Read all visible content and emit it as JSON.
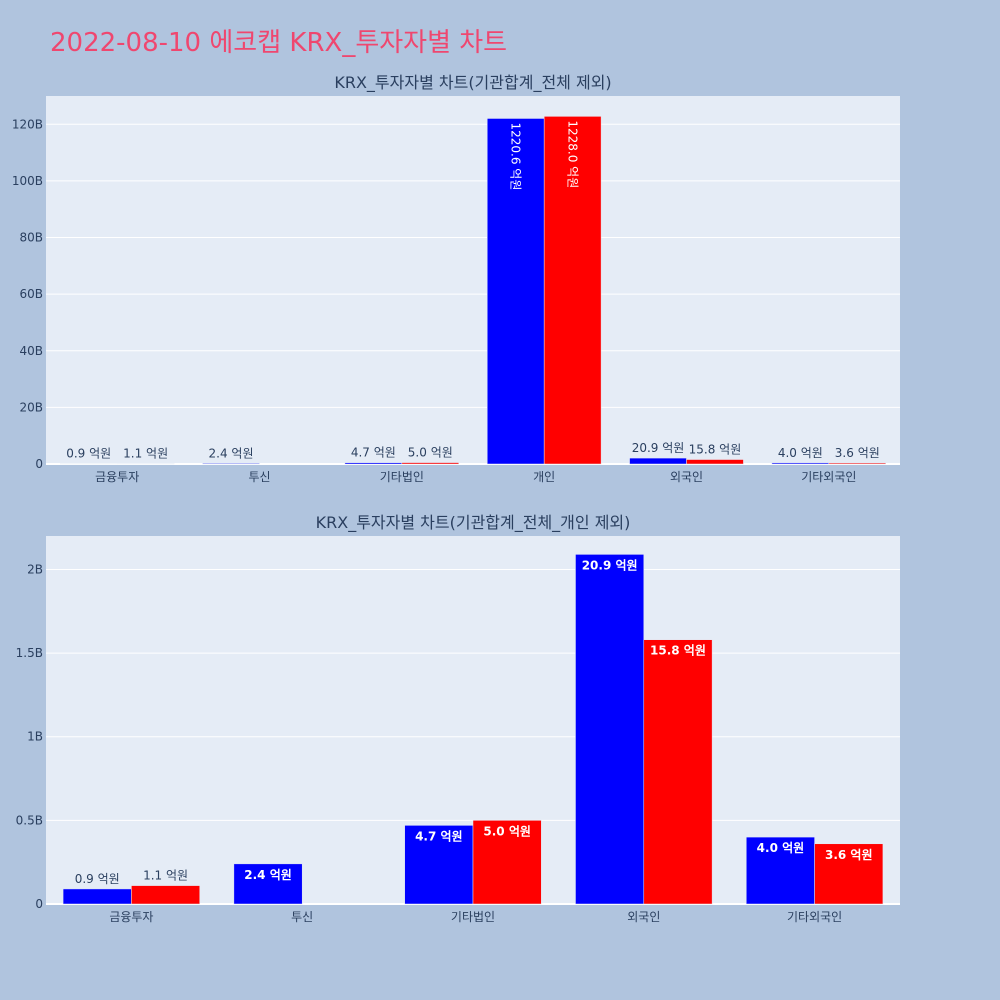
{
  "page": {
    "title": "2022-08-10 에코캡 KRX_투자자별 차트"
  },
  "chart_data": [
    {
      "type": "bar",
      "title": "KRX_투자자별 차트(기관합계_전체 제외)",
      "categories": [
        "금융투자",
        "투신",
        "기타법인",
        "개인",
        "외국인",
        "기타외국인"
      ],
      "series": [
        {
          "color": "#0000ff",
          "values": [
            90000000,
            240000000,
            470000000,
            122060000000,
            2090000000,
            400000000
          ],
          "labels": [
            "0.9 억원",
            "2.4 억원",
            "4.7 억원",
            "1220.6 억원",
            "20.9 억원",
            "4.0 억원"
          ]
        },
        {
          "color": "#ff0000",
          "values": [
            110000000,
            0,
            500000000,
            122800000000,
            1580000000,
            360000000
          ],
          "labels": [
            "1.1 억원",
            "",
            "5.0 억원",
            "1228.0 억원",
            "15.8 억원",
            "3.6 억원"
          ]
        }
      ],
      "ylim": [
        0,
        130000000000
      ],
      "yticks": [
        0,
        20000000000,
        40000000000,
        60000000000,
        80000000000,
        100000000000,
        120000000000
      ],
      "ytick_labels": [
        "0",
        "20B",
        "40B",
        "60B",
        "80B",
        "100B",
        "120B"
      ],
      "grid": true
    },
    {
      "type": "bar",
      "title": "KRX_투자자별 차트(기관합계_전체_개인 제외)",
      "categories": [
        "금융투자",
        "투신",
        "기타법인",
        "외국인",
        "기타외국인"
      ],
      "series": [
        {
          "color": "#0000ff",
          "values": [
            90000000,
            240000000,
            470000000,
            2090000000,
            400000000
          ],
          "labels": [
            "0.9 억원",
            "2.4 억원",
            "4.7 억원",
            "20.9 억원",
            "4.0 억원"
          ]
        },
        {
          "color": "#ff0000",
          "values": [
            110000000,
            0,
            500000000,
            1580000000,
            360000000
          ],
          "labels": [
            "1.1 억원",
            "",
            "5.0 억원",
            "15.8 억원",
            "3.6 억원"
          ]
        }
      ],
      "ylim": [
        0,
        2200000000
      ],
      "yticks": [
        0,
        500000000,
        1000000000,
        1500000000,
        2000000000
      ],
      "ytick_labels": [
        "0",
        "0.5B",
        "1B",
        "1.5B",
        "2B"
      ],
      "grid": true
    }
  ]
}
